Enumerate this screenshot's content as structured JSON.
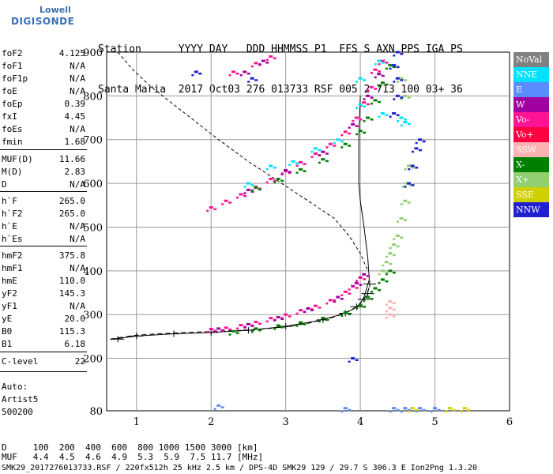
{
  "logo": {
    "top": "Lowell",
    "main": "DIGISONDE"
  },
  "header": {
    "row1": "Station      YYYY DAY   DDD HHMMSS P1  FFS S AXN PPS IGA PS",
    "row2": "Santa Maria  2017 Oct03 276 013733 RSF 005 2 713 100 03+ 36"
  },
  "params": [
    {
      "label": "foF2",
      "value": "4.125"
    },
    {
      "label": "foF1",
      "value": "N/A"
    },
    {
      "label": "foF1p",
      "value": "N/A"
    },
    {
      "label": "foE",
      "value": "N/A"
    },
    {
      "label": "foEp",
      "value": "0.39"
    },
    {
      "label": "fxI",
      "value": "4.45"
    },
    {
      "label": "foEs",
      "value": "N/A"
    },
    {
      "label": "fmin",
      "value": "1.68"
    },
    {
      "label": "MUF(D)",
      "value": "11.66"
    },
    {
      "label": "M(D)",
      "value": "2.83"
    },
    {
      "label": "D",
      "value": "N/A"
    },
    {
      "label": "h`F",
      "value": "265.0"
    },
    {
      "label": "h`F2",
      "value": "265.0"
    },
    {
      "label": "h`E",
      "value": "N/A"
    },
    {
      "label": "h`Es",
      "value": "N/A"
    },
    {
      "label": "hmF2",
      "value": "375.8"
    },
    {
      "label": "hmF1",
      "value": "N/A"
    },
    {
      "label": "hmE",
      "value": "110.0"
    },
    {
      "label": "yF2",
      "value": "145.3"
    },
    {
      "label": "yF1",
      "value": "N/A"
    },
    {
      "label": "yE",
      "value": "20.0"
    },
    {
      "label": "B0",
      "value": "115.3"
    },
    {
      "label": "B1",
      "value": "6.18"
    },
    {
      "label": "C-level",
      "value": "22"
    }
  ],
  "auto": [
    "Auto:",
    "Artist5",
    "500200"
  ],
  "legend": [
    {
      "label": "NoVal",
      "bg": "#808080",
      "fg": "#ffffff"
    },
    {
      "label": "NNE",
      "bg": "#00e0ff",
      "fg": "#ffffff"
    },
    {
      "label": "E",
      "bg": "#5a8cff",
      "fg": "#ffffff"
    },
    {
      "label": "W",
      "bg": "#a000a0",
      "fg": "#ffffff"
    },
    {
      "label": "Vo-",
      "bg": "#ff1493",
      "fg": "#ffffff"
    },
    {
      "label": "Vo+",
      "bg": "#ff0040",
      "fg": "#ffffff"
    },
    {
      "label": "SSW",
      "bg": "#ffb0b0",
      "fg": "#ffffff"
    },
    {
      "label": "X-",
      "bg": "#008000",
      "fg": "#ffffff"
    },
    {
      "label": "X+",
      "bg": "#90d070",
      "fg": "#ffffff"
    },
    {
      "label": "SSE",
      "bg": "#d0d000",
      "fg": "#ffffff"
    },
    {
      "label": "NNW",
      "bg": "#2020d0",
      "fg": "#ffffff"
    }
  ],
  "footer": {
    "line1": "D     100  200  400  600  800 1000 1500 3000 [km]",
    "line2": "MUF   4.4  4.5  4.6  4.9  5.3  5.9  7.5 11.7 [MHz]",
    "line3": "SMK29_2017276013733.RSF / 220fx512h 25 kHz 2.5 km / DPS-4D SMK29 129 / 29.7 S 306.3 E Ion2Png 1.3.20"
  },
  "chart_data": {
    "type": "scatter",
    "xlim": [
      0.6,
      6.0
    ],
    "ylim": [
      80,
      900
    ],
    "x_ticks": [
      1,
      2,
      3,
      4,
      5,
      6
    ],
    "y_ticks": [
      80,
      200,
      300,
      400,
      500,
      600,
      700,
      800,
      900
    ],
    "grid": true,
    "legend_placement": "right",
    "series": [
      {
        "name": "Vo-",
        "color": "#ff1493",
        "points": [
          [
            2.0,
            267
          ],
          [
            2.2,
            270
          ],
          [
            2.4,
            276
          ],
          [
            2.6,
            283
          ],
          [
            2.8,
            292
          ],
          [
            3.0,
            300
          ],
          [
            3.2,
            310
          ],
          [
            3.4,
            320
          ],
          [
            3.6,
            333
          ],
          [
            3.8,
            352
          ],
          [
            3.9,
            365
          ],
          [
            4.0,
            385
          ],
          [
            2.0,
            545
          ],
          [
            2.2,
            560
          ],
          [
            2.4,
            575
          ],
          [
            2.6,
            592
          ],
          [
            2.8,
            610
          ],
          [
            3.0,
            628
          ],
          [
            3.2,
            648
          ],
          [
            3.4,
            668
          ],
          [
            3.6,
            690
          ],
          [
            3.8,
            718
          ],
          [
            3.95,
            750
          ],
          [
            4.05,
            785
          ],
          [
            4.15,
            820
          ],
          [
            4.2,
            860
          ],
          [
            4.3,
            880
          ],
          [
            2.3,
            855
          ],
          [
            2.6,
            875
          ],
          [
            2.8,
            890
          ]
        ]
      },
      {
        "name": "W",
        "color": "#a000a0",
        "points": [
          [
            2.1,
            268
          ],
          [
            2.5,
            278
          ],
          [
            2.9,
            294
          ],
          [
            3.3,
            314
          ],
          [
            3.7,
            340
          ],
          [
            3.95,
            372
          ],
          [
            4.05,
            392
          ],
          [
            2.5,
            585
          ],
          [
            3.0,
            630
          ],
          [
            3.5,
            672
          ],
          [
            3.9,
            735
          ],
          [
            4.1,
            800
          ],
          [
            4.25,
            850
          ],
          [
            2.45,
            855
          ],
          [
            2.7,
            880
          ]
        ]
      },
      {
        "name": "X-",
        "color": "#008000",
        "points": [
          [
            2.3,
            262
          ],
          [
            2.6,
            268
          ],
          [
            2.9,
            275
          ],
          [
            3.2,
            282
          ],
          [
            3.5,
            292
          ],
          [
            3.8,
            305
          ],
          [
            4.0,
            322
          ],
          [
            4.1,
            340
          ],
          [
            4.2,
            360
          ],
          [
            4.3,
            380
          ],
          [
            4.4,
            400
          ],
          [
            2.6,
            590
          ],
          [
            2.9,
            610
          ],
          [
            3.2,
            632
          ],
          [
            3.5,
            655
          ],
          [
            3.8,
            690
          ],
          [
            4.0,
            720
          ],
          [
            4.1,
            750
          ],
          [
            4.2,
            790
          ],
          [
            4.3,
            830
          ],
          [
            4.4,
            870
          ]
        ]
      },
      {
        "name": "X+",
        "color": "#90d070",
        "points": [
          [
            4.3,
            400
          ],
          [
            4.35,
            420
          ],
          [
            4.4,
            440
          ],
          [
            4.45,
            460
          ],
          [
            4.5,
            480
          ],
          [
            4.55,
            520
          ],
          [
            4.6,
            560
          ],
          [
            4.62,
            600
          ],
          [
            4.65,
            640
          ],
          [
            4.6,
            800
          ],
          [
            4.55,
            840
          ]
        ]
      },
      {
        "name": "NNW",
        "color": "#2020d0",
        "points": [
          [
            4.65,
            600
          ],
          [
            4.7,
            640
          ],
          [
            4.75,
            680
          ],
          [
            4.8,
            700
          ],
          [
            4.45,
            760
          ],
          [
            4.5,
            800
          ],
          [
            4.5,
            840
          ],
          [
            4.45,
            870
          ],
          [
            4.5,
            900
          ],
          [
            3.9,
            200
          ],
          [
            1.8,
            855
          ],
          [
            2.55,
            840
          ]
        ]
      },
      {
        "name": "NNE",
        "color": "#00e0ff",
        "points": [
          [
            2.5,
            600
          ],
          [
            2.8,
            640
          ],
          [
            3.1,
            650
          ],
          [
            3.4,
            680
          ],
          [
            3.7,
            700
          ],
          [
            4.0,
            780
          ],
          [
            4.3,
            760
          ],
          [
            4.55,
            750
          ],
          [
            4.6,
            740
          ],
          [
            4.0,
            840
          ],
          [
            4.25,
            880
          ]
        ]
      },
      {
        "name": "SSW",
        "color": "#ffb0b0",
        "points": [
          [
            4.4,
            315
          ],
          [
            4.4,
            330
          ],
          [
            4.4,
            300
          ]
        ]
      },
      {
        "name": "E",
        "color": "#5a8cff",
        "points": [
          [
            4.45,
            86
          ],
          [
            4.6,
            86
          ],
          [
            4.8,
            86
          ],
          [
            5.0,
            86
          ],
          [
            3.8,
            86
          ],
          [
            2.1,
            92
          ]
        ]
      },
      {
        "name": "SSE",
        "color": "#d0d000",
        "points": [
          [
            5.2,
            86
          ],
          [
            5.4,
            86
          ],
          [
            4.7,
            86
          ]
        ]
      }
    ],
    "model_profile": [
      [
        0.65,
        244
      ],
      [
        0.8,
        248
      ],
      [
        1.0,
        253
      ],
      [
        1.2,
        255
      ],
      [
        1.5,
        258
      ],
      [
        1.8,
        260
      ],
      [
        2.1,
        262
      ],
      [
        2.4,
        264
      ],
      [
        2.7,
        267
      ],
      [
        3.0,
        272
      ],
      [
        3.3,
        280
      ],
      [
        3.6,
        292
      ],
      [
        3.8,
        303
      ],
      [
        3.95,
        318
      ],
      [
        4.05,
        335
      ],
      [
        4.1,
        350
      ],
      [
        4.125,
        370
      ]
    ],
    "virtual_height_trace": [
      [
        0.65,
        243
      ],
      [
        1.0,
        251
      ],
      [
        1.5,
        256
      ],
      [
        2.0,
        259
      ],
      [
        2.5,
        264
      ],
      [
        3.0,
        273
      ],
      [
        3.4,
        285
      ],
      [
        3.7,
        298
      ],
      [
        3.9,
        312
      ],
      [
        4.0,
        325
      ],
      [
        4.05,
        340
      ],
      [
        4.12,
        380
      ],
      [
        4.1,
        430
      ],
      [
        4.05,
        500
      ],
      [
        4.0,
        560
      ],
      [
        3.98,
        600
      ],
      [
        3.98,
        700
      ],
      [
        4.0,
        800
      ]
    ],
    "muf_curve": [
      [
        0.75,
        900
      ],
      [
        0.95,
        860
      ],
      [
        1.2,
        820
      ],
      [
        1.5,
        780
      ],
      [
        1.8,
        740
      ],
      [
        2.1,
        700
      ],
      [
        2.5,
        650
      ],
      [
        2.9,
        605
      ],
      [
        3.3,
        560
      ],
      [
        3.65,
        520
      ],
      [
        3.85,
        480
      ],
      [
        4.0,
        440
      ],
      [
        4.1,
        400
      ]
    ],
    "error_bar_points": [
      [
        0.75,
        244
      ],
      [
        1.0,
        251
      ],
      [
        1.5,
        256
      ],
      [
        2.0,
        259
      ],
      [
        2.5,
        264
      ],
      [
        3.0,
        273
      ],
      [
        3.5,
        288
      ],
      [
        3.8,
        303
      ],
      [
        3.95,
        318
      ],
      [
        4.05,
        335
      ],
      [
        4.1,
        348
      ],
      [
        4.125,
        370
      ]
    ]
  }
}
